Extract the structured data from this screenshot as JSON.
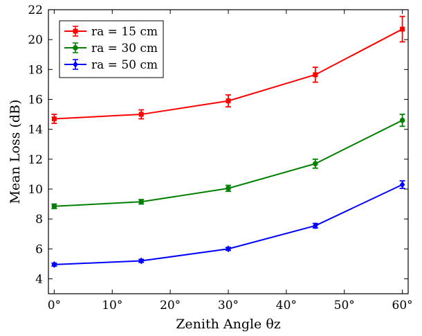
{
  "chart_data": {
    "type": "line",
    "xlabel": "Zenith Angle θz",
    "ylabel": "Mean Loss (dB)",
    "xlim": [
      -1,
      61
    ],
    "ylim": [
      3,
      22
    ],
    "x": [
      0,
      15,
      30,
      45,
      60
    ],
    "xticks": [
      0,
      10,
      20,
      30,
      40,
      50,
      60
    ],
    "xtick_labels": [
      "0°",
      "10°",
      "20°",
      "30°",
      "40°",
      "50°",
      "60°"
    ],
    "yticks": [
      4,
      6,
      8,
      10,
      12,
      14,
      16,
      18,
      20,
      22
    ],
    "ytick_labels": [
      "4",
      "6",
      "8",
      "10",
      "12",
      "14",
      "16",
      "18",
      "20",
      "22"
    ],
    "grid": false,
    "legend_position": "top-left",
    "series": [
      {
        "name": "ra = 15 cm",
        "color": "#ff0000",
        "marker": "square",
        "values": [
          14.7,
          15.0,
          15.9,
          17.65,
          20.7
        ],
        "errors": [
          0.3,
          0.3,
          0.4,
          0.5,
          0.85
        ]
      },
      {
        "name": "ra = 30 cm",
        "color": "#008000",
        "marker": "circle",
        "values": [
          8.85,
          9.15,
          10.05,
          11.7,
          14.6
        ],
        "errors": [
          0.15,
          0.15,
          0.2,
          0.3,
          0.4
        ]
      },
      {
        "name": "ra = 50 cm",
        "color": "#0000ff",
        "marker": "diamond",
        "values": [
          4.95,
          5.2,
          6.0,
          7.55,
          10.3
        ],
        "errors": [
          0.1,
          0.1,
          0.1,
          0.15,
          0.25
        ]
      }
    ]
  }
}
